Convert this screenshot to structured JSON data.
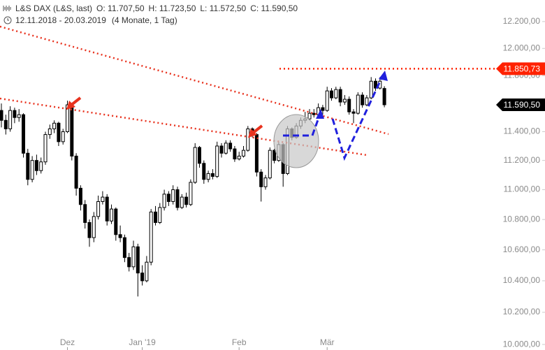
{
  "header": {
    "title": "L&S DAX (L&S, last)",
    "ohlc_labels": [
      "O: 11.707,50",
      "H: 11.723,50",
      "L: 11.572,50",
      "C: 11.590,50"
    ],
    "date_range": "12.11.2018 - 20.03.2019",
    "period": "(4 Monate, 1 Tag)"
  },
  "chart_data": {
    "type": "candlestick",
    "log": true,
    "up_color": "#ffffff",
    "down_color": "#000000",
    "outline_color": "#000000",
    "categories": [
      null,
      null,
      null,
      null,
      null,
      null,
      null,
      null,
      null,
      null,
      null,
      null,
      null,
      null,
      null,
      "Dez",
      null,
      null,
      null,
      null,
      null,
      null,
      null,
      null,
      null,
      null,
      null,
      null,
      null,
      null,
      null,
      null,
      "Jan '19",
      null,
      null,
      null,
      null,
      null,
      null,
      null,
      null,
      null,
      null,
      null,
      null,
      null,
      null,
      null,
      null,
      null,
      null,
      null,
      null,
      null,
      "Feb",
      null,
      null,
      null,
      null,
      null,
      null,
      null,
      null,
      null,
      null,
      null,
      null,
      null,
      null,
      null,
      null,
      null,
      null,
      null,
      "Mär",
      null,
      null,
      null,
      null,
      null,
      null,
      null,
      null,
      null,
      null,
      null,
      null,
      null
    ],
    "open": [
      11550,
      11480,
      11420,
      11550,
      11500,
      11520,
      11250,
      11070,
      11200,
      11130,
      11190,
      11380,
      11420,
      11460,
      11330,
      11400,
      11590,
      11230,
      11010,
      10900,
      10780,
      10680,
      10820,
      10920,
      10950,
      10790,
      10870,
      10700,
      10680,
      10550,
      10490,
      10620,
      10450,
      10400,
      10520,
      10850,
      10780,
      10880,
      10970,
      10920,
      11000,
      10880,
      10950,
      10900,
      11050,
      11290,
      11180,
      11070,
      11110,
      11090,
      11300,
      11250,
      11320,
      11280,
      11210,
      11230,
      11270,
      11420,
      11380,
      11120,
      11020,
      11080,
      11270,
      11200,
      11310,
      11110,
      11420,
      11360,
      11440,
      11480,
      11490,
      11530,
      11520,
      11570,
      11550,
      11690,
      11640,
      11700,
      11610,
      11630,
      11540,
      11530,
      11660,
      11590,
      11640,
      11760,
      11710,
      11707.5
    ],
    "high": [
      11600,
      11520,
      11580,
      11570,
      11560,
      11530,
      11280,
      11230,
      11240,
      11220,
      11400,
      11450,
      11480,
      11470,
      11420,
      11620,
      11600,
      11250,
      11030,
      10930,
      10800,
      10850,
      10960,
      10990,
      10970,
      10900,
      10880,
      10760,
      10700,
      10580,
      10660,
      10640,
      10500,
      10560,
      10870,
      10890,
      10910,
      11000,
      10990,
      11030,
      11020,
      10970,
      10980,
      11070,
      11320,
      11300,
      11200,
      11130,
      11140,
      11330,
      11320,
      11340,
      11340,
      11300,
      11260,
      11300,
      11440,
      11430,
      11390,
      11140,
      11100,
      11290,
      11280,
      11330,
      11320,
      11440,
      11430,
      11460,
      11500,
      11540,
      11560,
      11560,
      11600,
      11590,
      11720,
      11710,
      11720,
      11720,
      11660,
      11650,
      11560,
      11680,
      11680,
      11660,
      11790,
      11780,
      11790,
      11723.5
    ],
    "low": [
      11430,
      11380,
      11400,
      11460,
      11470,
      11220,
      11030,
      11050,
      11100,
      11110,
      11170,
      11350,
      11390,
      11300,
      11310,
      11390,
      11200,
      10960,
      10860,
      10740,
      10620,
      10650,
      10800,
      10900,
      10760,
      10770,
      10660,
      10650,
      10520,
      10460,
      10470,
      10300,
      10370,
      10390,
      10500,
      10760,
      10770,
      10860,
      10890,
      10900,
      10860,
      10870,
      10880,
      10890,
      11040,
      11150,
      11040,
      11050,
      11070,
      11080,
      11220,
      11240,
      11260,
      11190,
      11200,
      11220,
      11260,
      11360,
      11090,
      10920,
      11000,
      11070,
      11180,
      11190,
      11020,
      11100,
      11340,
      11350,
      11420,
      11460,
      11480,
      11500,
      11510,
      11520,
      11540,
      11620,
      11630,
      11580,
      11590,
      11520,
      11460,
      11520,
      11570,
      11580,
      11630,
      11690,
      11700,
      11572.5
    ],
    "close": [
      11480,
      11420,
      11550,
      11500,
      11520,
      11250,
      11070,
      11200,
      11130,
      11190,
      11380,
      11420,
      11460,
      11330,
      11400,
      11590,
      11230,
      11010,
      10900,
      10780,
      10680,
      10820,
      10920,
      10950,
      10790,
      10870,
      10700,
      10680,
      10550,
      10490,
      10620,
      10450,
      10400,
      10520,
      10850,
      10780,
      10880,
      10970,
      10920,
      11000,
      10880,
      10950,
      10900,
      11050,
      11290,
      11180,
      11070,
      11110,
      11090,
      11300,
      11250,
      11320,
      11280,
      11210,
      11230,
      11270,
      11420,
      11380,
      11120,
      11020,
      11080,
      11270,
      11200,
      11310,
      11110,
      11420,
      11360,
      11440,
      11480,
      11490,
      11530,
      11520,
      11570,
      11550,
      11690,
      11640,
      11700,
      11610,
      11630,
      11540,
      11530,
      11660,
      11590,
      11640,
      11760,
      11710,
      11760,
      11590.5
    ],
    "ylim": [
      9966,
      12363
    ],
    "yticks": [
      {
        "value": 10000,
        "label": "10.000,00"
      },
      {
        "value": 10200,
        "label": "10.200,00"
      },
      {
        "value": 10400,
        "label": "10.400,00"
      },
      {
        "value": 10600,
        "label": "10.600,00"
      },
      {
        "value": 10800,
        "label": "10.800,00"
      },
      {
        "value": 11000,
        "label": "11.000,00"
      },
      {
        "value": 11200,
        "label": "11.200,00"
      },
      {
        "value": 11400,
        "label": "11.400,00"
      },
      {
        "value": 11600,
        "label": "11.600,00"
      },
      {
        "value": 11800,
        "label": "11.800,00"
      },
      {
        "value": 12000,
        "label": "12.000,00"
      },
      {
        "value": 12200,
        "label": "12.200,00"
      }
    ],
    "reference_lines": [
      {
        "value": 11850.73,
        "label": "11.850,73",
        "color": "#ff2200",
        "style": "dotted"
      },
      {
        "value": 11590.5,
        "label": "11.590,50",
        "color": "#000000",
        "style": "none"
      }
    ]
  }
}
